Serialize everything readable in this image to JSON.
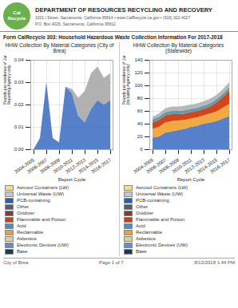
{
  "title": "DEPARTMENT OF RESOURCES RECYCLING AND RECOVERY",
  "subtitle": [
    "1001 I Street, Sacramento, California 95814  •  www.CalRecycle.ca.gov  •  (916) 322-4027",
    "P.O. Box 4025, Sacramento, California 95812"
  ],
  "annotations": [
    "Cal\nRecycle",
    "Form CalRecycle 303: Household Hazardous Waste Collection Information For 2017-2018"
  ],
  "caption": [
    "City of Brea",
    "Page 1 of 7",
    "8/13/2018 1:44 PM"
  ],
  "chart_data": [
    {
      "type": "area",
      "stacked": true,
      "title": "HHW Collection By Material Categories (City of Brea)",
      "xlabel": "Report Cycle",
      "ylabel": "Pounds per residence of Jurisdiction\nReporting Agency only",
      "categories": [
        "2004-2005",
        null,
        "2006-2007",
        null,
        "2008-2009",
        null,
        "2010-2011",
        null,
        "2012-2013",
        null,
        "2014-2015",
        null,
        "2016-2017"
      ],
      "series": [
        {
          "color": "#4472c4",
          "values": [
            0.0,
            0.005,
            0.03,
            0.005,
            0.003,
            0.028,
            0.025,
            0.015,
            0.012,
            0.018,
            0.022,
            0.02,
            0.022
          ]
        },
        {
          "color": "#a8a8a8",
          "values": [
            0.0,
            0.0,
            0.0,
            0.0,
            0.0,
            0.0,
            0.002,
            0.008,
            0.014,
            0.016,
            0.015,
            0.012,
            0.012
          ]
        }
      ],
      "ylim": [
        0,
        0.04
      ],
      "yticks": [
        {
          "value": 0,
          "label": "0.00"
        },
        0.01,
        0.02,
        0.03,
        0.04
      ],
      "grid": true,
      "legend_entries": [
        {
          "name": "Aerosol Containers (LW)",
          "color": "#f5e07a"
        },
        {
          "name": "Universal Waste (UW)",
          "color": "#c8c8c8"
        },
        {
          "name": "PCB-containing",
          "color": "#2060c0"
        },
        {
          "name": "Other",
          "color": "#506070"
        },
        {
          "name": "Oxidizer",
          "color": "#8b3a2a"
        },
        {
          "name": "Flammable and Poison",
          "color": "#d04010"
        },
        {
          "name": "Acid",
          "color": "#4090d0"
        },
        {
          "name": "Reclaimable",
          "color": "#f0a030"
        },
        {
          "name": "Asbestos",
          "color": "#e0d090"
        },
        {
          "name": "Electronic Devices (UW)",
          "color": "#6090d0"
        },
        {
          "name": "Base",
          "color": "#1a3a5a"
        }
      ]
    },
    {
      "type": "area",
      "stacked": true,
      "title": "HHW Collection By Material Categories (Statewide)",
      "xlabel": "Report Cycle",
      "ylabel": "Pounds per residence of Jurisdiction\n(Including Agency only)",
      "categories": [
        "2004-2005",
        null,
        "2006-2007",
        null,
        "2008-2009",
        null,
        "2010-2011",
        null,
        "2012-2013",
        null,
        "2014-2015",
        null,
        "2016-2017"
      ],
      "series": [
        {
          "color": "#4472c4",
          "values": [
            18,
            20,
            26,
            28,
            30,
            32,
            35,
            37,
            40,
            42,
            44,
            48,
            52
          ]
        },
        {
          "color": "#f0a030",
          "values": [
            14,
            15,
            16,
            16,
            15,
            14,
            13,
            13,
            13,
            14,
            15,
            17,
            19
          ]
        },
        {
          "color": "#cc3300",
          "values": [
            10,
            11,
            11,
            11,
            10,
            10,
            10,
            10,
            10,
            11,
            14,
            17,
            21
          ]
        },
        {
          "color": "#5090a8",
          "values": [
            5,
            5,
            5,
            5,
            5,
            5,
            5,
            5,
            5,
            5,
            5,
            5,
            5
          ]
        },
        {
          "color": "#b0b0b0",
          "values": [
            4,
            5,
            6,
            7,
            7,
            7,
            7,
            7,
            7,
            7,
            7,
            7,
            8
          ]
        }
      ],
      "ylim": [
        0,
        140
      ],
      "yticks": [
        0,
        20,
        40,
        60,
        80,
        100,
        120,
        140
      ],
      "grid": true,
      "legend_entries": [
        {
          "name": "Aerosol Containers (LW)",
          "color": "#f5e07a"
        },
        {
          "name": "Universal Waste (UW)",
          "color": "#c8c8c8"
        },
        {
          "name": "PCB-containing",
          "color": "#2060c0"
        },
        {
          "name": "Other",
          "color": "#506070"
        },
        {
          "name": "Oxidizer",
          "color": "#8b3a2a"
        },
        {
          "name": "Flammable and Poison",
          "color": "#d04010"
        },
        {
          "name": "Acid",
          "color": "#4090d0"
        },
        {
          "name": "Reclaimable",
          "color": "#f0a030"
        },
        {
          "name": "Asbestos",
          "color": "#e0d090"
        },
        {
          "name": "Electronic Devices (UW)",
          "color": "#6090d0"
        },
        {
          "name": "Base",
          "color": "#1a3a5a"
        }
      ]
    }
  ]
}
